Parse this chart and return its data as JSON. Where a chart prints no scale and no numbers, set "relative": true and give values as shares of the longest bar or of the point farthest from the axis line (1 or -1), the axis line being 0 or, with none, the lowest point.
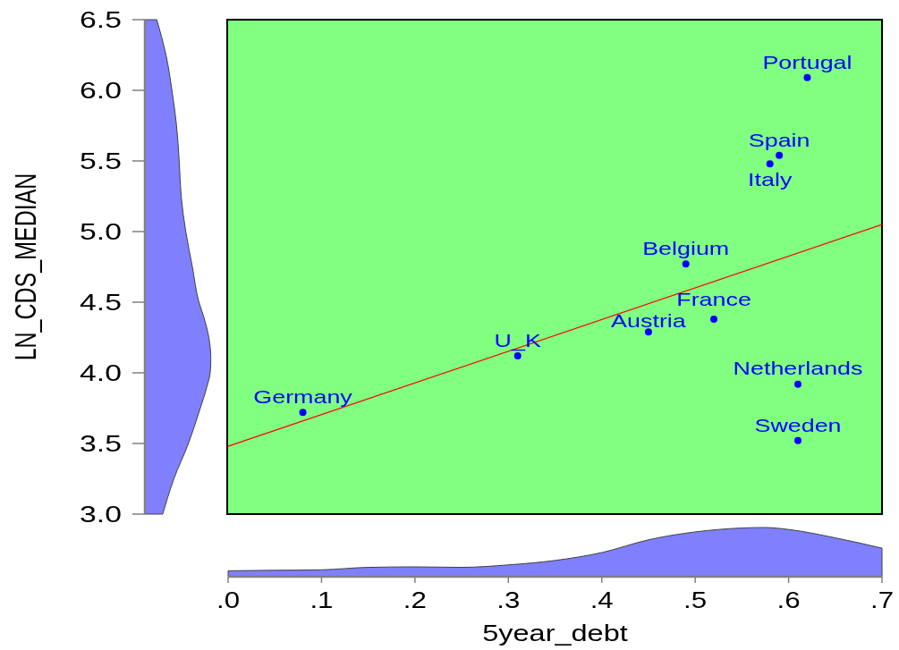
{
  "chart_data": [
    {
      "type": "area",
      "orientation": "horizontal",
      "relative": true,
      "ylim": [
        3.0,
        6.5
      ],
      "yticks": [
        {
          "value": 3,
          "label": "3.0"
        },
        3.5,
        {
          "value": 4,
          "label": "4.0"
        },
        4.5,
        {
          "value": 5,
          "label": "5.0"
        },
        5.5,
        {
          "value": 6,
          "label": "6.0"
        },
        6.5
      ],
      "tick_labels": "y",
      "ylabel": "LN_CDS_MEDIAN",
      "color": "#8080ff",
      "x": [
        3.0,
        3.25,
        3.5,
        3.75,
        3.9,
        4.0,
        4.1,
        4.25,
        4.4,
        4.5,
        4.75,
        5.0,
        5.25,
        5.5,
        5.75,
        6.0,
        6.25,
        6.5
      ],
      "values": [
        0.27,
        0.44,
        0.66,
        0.84,
        0.94,
        0.99,
        1.0,
        0.97,
        0.89,
        0.82,
        0.72,
        0.62,
        0.55,
        0.52,
        0.48,
        0.41,
        0.32,
        0.18
      ]
    },
    {
      "type": "scatter",
      "xlim": [
        0,
        0.7
      ],
      "ylim": [
        3.0,
        6.5
      ],
      "tick_labels": false,
      "series": [
        {
          "type": "scatter",
          "marker": "circle",
          "color": "#0000ff",
          "x": [
            0.62,
            0.59,
            0.58,
            0.49,
            0.52,
            0.45,
            0.31,
            0.61,
            0.08,
            0.61
          ],
          "values": [
            6.09,
            5.54,
            5.48,
            4.77,
            4.38,
            4.29,
            4.12,
            3.92,
            3.72,
            3.52
          ]
        },
        {
          "type": "line",
          "x": [
            0,
            0.7
          ],
          "values": [
            3.48,
            5.05
          ],
          "color": "#ff0000"
        }
      ],
      "annotations": [
        {
          "text": "Portugal",
          "x": 0.62,
          "y": 6.09
        },
        {
          "text": "Spain",
          "x": 0.59,
          "y": 5.54
        },
        {
          "text": "Italy",
          "x": 0.58,
          "y": 5.48
        },
        {
          "text": "Belgium",
          "x": 0.49,
          "y": 4.77
        },
        {
          "text": "France",
          "x": 0.52,
          "y": 4.38
        },
        {
          "text": "Austria",
          "x": 0.45,
          "y": 4.29
        },
        {
          "text": "U_K",
          "x": 0.31,
          "y": 4.12
        },
        {
          "text": "Netherlands",
          "x": 0.61,
          "y": 3.92
        },
        {
          "text": "Germany",
          "x": 0.08,
          "y": 3.72
        },
        {
          "text": "Sweden",
          "x": 0.61,
          "y": 3.52
        }
      ]
    },
    {
      "type": "area",
      "relative": true,
      "xlim": [
        0,
        0.7
      ],
      "xticks": [
        {
          "value": 0,
          "label": ".0"
        },
        {
          "value": 0.1,
          "label": ".1"
        },
        {
          "value": 0.2,
          "label": ".2"
        },
        {
          "value": 0.3,
          "label": ".3"
        },
        {
          "value": 0.4,
          "label": ".4"
        },
        {
          "value": 0.5,
          "label": ".5"
        },
        {
          "value": 0.6,
          "label": ".6"
        },
        {
          "value": 0.7,
          "label": ".7"
        }
      ],
      "tick_labels": "x",
      "xlabel": "5year_debt",
      "color": "#8080ff",
      "x": [
        0,
        0.05,
        0.1,
        0.15,
        0.2,
        0.25,
        0.3,
        0.35,
        0.4,
        0.45,
        0.5,
        0.55,
        0.575,
        0.6,
        0.65,
        0.7
      ],
      "values": [
        0.12,
        0.13,
        0.14,
        0.19,
        0.2,
        0.19,
        0.24,
        0.33,
        0.49,
        0.75,
        0.91,
        0.99,
        1.0,
        0.96,
        0.79,
        0.58
      ]
    }
  ]
}
